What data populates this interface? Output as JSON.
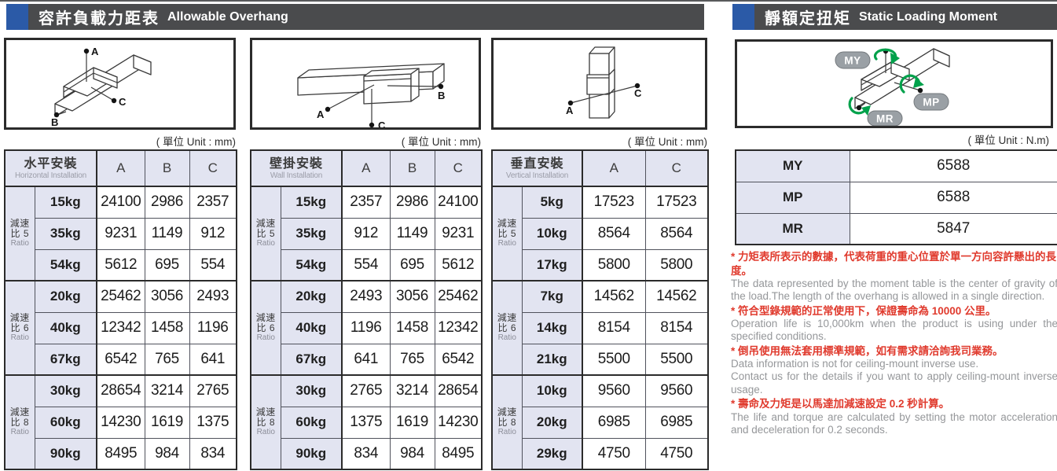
{
  "headers": {
    "left": {
      "zh": "容許負載力距表",
      "en": "Allowable Overhang"
    },
    "right": {
      "zh": "靜額定扭矩",
      "en": "Static Loading Moment"
    }
  },
  "unit_labels": {
    "mm": "( 單位 Unit : mm)",
    "nm": "( 單位 Unit : N.m)"
  },
  "colors": {
    "accent_blue": "#2b5aa7",
    "bar_gray": "#4a4b4d",
    "table_header_bg": "#e2e4f1",
    "note_red": "#e03a2d",
    "note_gray": "#95979a",
    "diagram_green": "#00a14b"
  },
  "diagrams": {
    "horizontal": {
      "labels": {
        "a": "A",
        "b": "B",
        "c": "C"
      }
    },
    "wall": {
      "labels": {
        "a": "A",
        "b": "B",
        "c": "C"
      }
    },
    "vertical": {
      "labels": {
        "a": "A",
        "c": "C"
      }
    },
    "moment": {
      "labels": {
        "my": "MY",
        "mp": "MP",
        "mr": "MR"
      }
    }
  },
  "overhang_tables": [
    {
      "key": "horizontal",
      "title_zh": "水平安裝",
      "title_en": "Horizontal Installation",
      "columns": [
        "A",
        "B",
        "C"
      ],
      "groups": [
        {
          "ratio_line1": "減速",
          "ratio_line2": "比 5",
          "ratio_en": "Ratio",
          "rows": [
            {
              "load": "15kg",
              "values": [
                "24100",
                "2986",
                "2357"
              ]
            },
            {
              "load": "35kg",
              "values": [
                "9231",
                "1149",
                "912"
              ]
            },
            {
              "load": "54kg",
              "values": [
                "5612",
                "695",
                "554"
              ]
            }
          ]
        },
        {
          "ratio_line1": "減速",
          "ratio_line2": "比 6",
          "ratio_en": "Ratio",
          "rows": [
            {
              "load": "20kg",
              "values": [
                "25462",
                "3056",
                "2493"
              ]
            },
            {
              "load": "40kg",
              "values": [
                "12342",
                "1458",
                "1196"
              ]
            },
            {
              "load": "67kg",
              "values": [
                "6542",
                "765",
                "641"
              ]
            }
          ]
        },
        {
          "ratio_line1": "減速",
          "ratio_line2": "比 8",
          "ratio_en": "Ratio",
          "rows": [
            {
              "load": "30kg",
              "values": [
                "28654",
                "3214",
                "2765"
              ]
            },
            {
              "load": "60kg",
              "values": [
                "14230",
                "1619",
                "1375"
              ]
            },
            {
              "load": "90kg",
              "values": [
                "8495",
                "984",
                "834"
              ]
            }
          ]
        }
      ]
    },
    {
      "key": "wall",
      "title_zh": "壁掛安裝",
      "title_en": "Wall Installation",
      "columns": [
        "A",
        "B",
        "C"
      ],
      "groups": [
        {
          "ratio_line1": "減速",
          "ratio_line2": "比 5",
          "ratio_en": "Ratio",
          "rows": [
            {
              "load": "15kg",
              "values": [
                "2357",
                "2986",
                "24100"
              ]
            },
            {
              "load": "35kg",
              "values": [
                "912",
                "1149",
                "9231"
              ]
            },
            {
              "load": "54kg",
              "values": [
                "554",
                "695",
                "5612"
              ]
            }
          ]
        },
        {
          "ratio_line1": "減速",
          "ratio_line2": "比 6",
          "ratio_en": "Ratio",
          "rows": [
            {
              "load": "20kg",
              "values": [
                "2493",
                "3056",
                "25462"
              ]
            },
            {
              "load": "40kg",
              "values": [
                "1196",
                "1458",
                "12342"
              ]
            },
            {
              "load": "67kg",
              "values": [
                "641",
                "765",
                "6542"
              ]
            }
          ]
        },
        {
          "ratio_line1": "減速",
          "ratio_line2": "比 8",
          "ratio_en": "Ratio",
          "rows": [
            {
              "load": "30kg",
              "values": [
                "2765",
                "3214",
                "28654"
              ]
            },
            {
              "load": "60kg",
              "values": [
                "1375",
                "1619",
                "14230"
              ]
            },
            {
              "load": "90kg",
              "values": [
                "834",
                "984",
                "8495"
              ]
            }
          ]
        }
      ]
    },
    {
      "key": "vertical",
      "title_zh": "垂直安裝",
      "title_en": "Vertical Installation",
      "columns": [
        "A",
        "C"
      ],
      "groups": [
        {
          "ratio_line1": "減速",
          "ratio_line2": "比 5",
          "ratio_en": "Ratio",
          "rows": [
            {
              "load": "5kg",
              "values": [
                "17523",
                "17523"
              ]
            },
            {
              "load": "10kg",
              "values": [
                "8564",
                "8564"
              ]
            },
            {
              "load": "17kg",
              "values": [
                "5800",
                "5800"
              ]
            }
          ]
        },
        {
          "ratio_line1": "減速",
          "ratio_line2": "比 6",
          "ratio_en": "Ratio",
          "rows": [
            {
              "load": "7kg",
              "values": [
                "14562",
                "14562"
              ]
            },
            {
              "load": "14kg",
              "values": [
                "8154",
                "8154"
              ]
            },
            {
              "load": "21kg",
              "values": [
                "5500",
                "5500"
              ]
            }
          ]
        },
        {
          "ratio_line1": "減速",
          "ratio_line2": "比 8",
          "ratio_en": "Ratio",
          "rows": [
            {
              "load": "10kg",
              "values": [
                "9560",
                "9560"
              ]
            },
            {
              "load": "20kg",
              "values": [
                "6985",
                "6985"
              ]
            },
            {
              "load": "29kg",
              "values": [
                "4750",
                "4750"
              ]
            }
          ]
        }
      ]
    }
  ],
  "moment_table": {
    "rows": [
      {
        "label": "MY",
        "value": "6588"
      },
      {
        "label": "MP",
        "value": "6588"
      },
      {
        "label": "MR",
        "value": "5847"
      }
    ]
  },
  "notes": [
    {
      "zh": "* 力矩表所表示的數據，代表荷重的重心位置於單一方向容許懸出的長度。",
      "en": [
        "The data represented by the moment table is the center of gravity of the load.The length of the overhang is allowed in a single direction."
      ]
    },
    {
      "zh": "* 符合型錄規範的正常使用下，保證壽命為 10000 公里。",
      "en": [
        "Operation life is 10,000km when the product is using under the specified conditions."
      ]
    },
    {
      "zh": "* 倒吊使用無法套用標準規範，如有需求請洽詢我司業務。",
      "en": [
        "Data information is not for ceiling-mount inverse use.",
        "Contact us for the details if you want to apply ceiling-mount inverse usage."
      ]
    },
    {
      "zh": "* 壽命及力矩是以馬達加減速設定 0.2 秒計算。",
      "en": [
        "The life and torque are calculated by setting the motor acceleration and deceleration for 0.2 seconds."
      ]
    }
  ]
}
